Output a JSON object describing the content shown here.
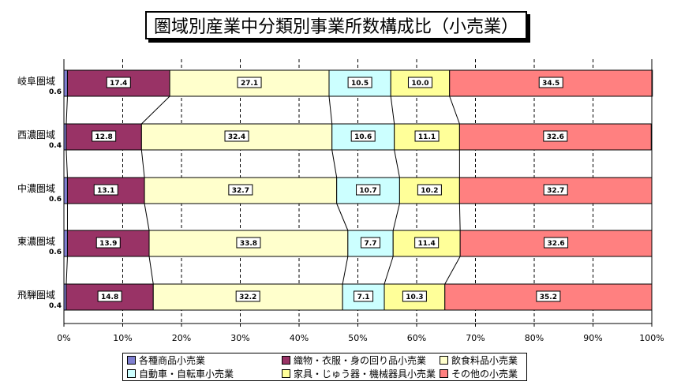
{
  "chart_data": {
    "type": "bar",
    "orientation": "horizontal",
    "stacked": "percent",
    "title": "圏域別産業中分類別事業所数構成比（小売業）",
    "categories": [
      "岐阜圏域",
      "西濃圏域",
      "中濃圏域",
      "東濃圏域",
      "飛騨圏域"
    ],
    "xlim": [
      0,
      100
    ],
    "x_ticks": [
      "0%",
      "10%",
      "20%",
      "30%",
      "40%",
      "50%",
      "60%",
      "70%",
      "80%",
      "90%",
      "100%"
    ],
    "grid": "vertical dashed",
    "legend_position": "bottom",
    "series": [
      {
        "name": "各種商品小売業",
        "color": "#7f7fd0",
        "values": [
          0.6,
          0.4,
          0.6,
          0.6,
          0.4
        ],
        "labels": [
          "0.6",
          "0.4",
          "0.6",
          "0.6",
          "0.4"
        ]
      },
      {
        "name": "織物・衣服・身の回り品小売業",
        "color": "#993366",
        "values": [
          17.4,
          12.8,
          13.1,
          13.9,
          14.8
        ],
        "labels": [
          "17.4",
          "12.8",
          "13.1",
          "13.9",
          "14.8"
        ]
      },
      {
        "name": "飲食料品小売業",
        "color": "#ffffcc",
        "values": [
          27.1,
          32.4,
          32.7,
          33.8,
          32.2
        ],
        "labels": [
          "27.1",
          "32.4",
          "32.7",
          "33.8",
          "32.2"
        ]
      },
      {
        "name": "自動車・自転車小売業",
        "color": "#ccffff",
        "values": [
          10.5,
          10.6,
          10.7,
          7.7,
          7.1
        ],
        "labels": [
          "10.5",
          "10.6",
          "10.7",
          "7.7",
          "7.1"
        ]
      },
      {
        "name": "家具・じゅう器・機械器具小売業",
        "color": "#ffff99",
        "values": [
          10.0,
          11.1,
          10.2,
          11.4,
          10.3
        ],
        "labels": [
          "10.0",
          "11.1",
          "10.2",
          "11.4",
          "10.3"
        ]
      },
      {
        "name": "その他の小売業",
        "color": "#ff8080",
        "values": [
          34.5,
          32.6,
          32.7,
          32.6,
          35.2
        ],
        "labels": [
          "34.5",
          "32.6",
          "32.7",
          "32.6",
          "35.2"
        ]
      }
    ]
  }
}
